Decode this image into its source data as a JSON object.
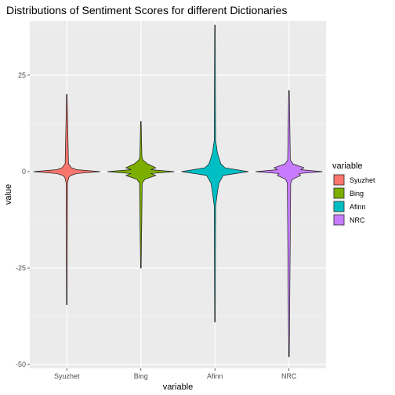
{
  "chart_data": {
    "type": "violin",
    "title": "Distributions of Sentiment Scores for different Dictionaries",
    "xlabel": "variable",
    "ylabel": "value",
    "categories": [
      "Syuzhet",
      "Bing",
      "Afinn",
      "NRC"
    ],
    "ylim": [
      -51,
      39
    ],
    "yticks": [
      -50,
      -25,
      0,
      25
    ],
    "ytick_labels": [
      "-50",
      "-25",
      "0",
      "25"
    ],
    "grid": true,
    "legend": {
      "title": "variable",
      "position": "right",
      "entries": [
        "Syuzhet",
        "Bing",
        "Afinn",
        "NRC"
      ]
    },
    "series": [
      {
        "category": "Syuzhet",
        "color": "#F8766D",
        "min": -34.5,
        "max": 20,
        "center": 0,
        "profile": [
          [
            -3,
            0.02
          ],
          [
            -1.5,
            0.06
          ],
          [
            -1,
            0.12
          ],
          [
            -0.5,
            0.3
          ],
          [
            0,
            1.0
          ],
          [
            0.5,
            0.3
          ],
          [
            1,
            0.14
          ],
          [
            1.5,
            0.1
          ],
          [
            2,
            0.05
          ]
        ]
      },
      {
        "category": "Bing",
        "color": "#7CAE00",
        "min": -25,
        "max": 13,
        "center": 0,
        "profile": [
          [
            -3,
            0.04
          ],
          [
            -2,
            0.12
          ],
          [
            -1,
            0.45
          ],
          [
            -0.5,
            0.3
          ],
          [
            0,
            1.0
          ],
          [
            0.5,
            0.3
          ],
          [
            1,
            0.45
          ],
          [
            2,
            0.2
          ],
          [
            3,
            0.06
          ],
          [
            4,
            0.03
          ]
        ]
      },
      {
        "category": "Afinn",
        "color": "#00BFC4",
        "min": -39,
        "max": 38,
        "center": 0,
        "profile": [
          [
            -9,
            0.02
          ],
          [
            -7,
            0.05
          ],
          [
            -5,
            0.08
          ],
          [
            -3,
            0.12
          ],
          [
            -1,
            0.25
          ],
          [
            0,
            1.0
          ],
          [
            1,
            0.3
          ],
          [
            2,
            0.18
          ],
          [
            3,
            0.14
          ],
          [
            5,
            0.07
          ],
          [
            7,
            0.04
          ],
          [
            8,
            0.02
          ]
        ]
      },
      {
        "category": "NRC",
        "color": "#C77CFF",
        "min": -48,
        "max": 21,
        "center": 0,
        "profile": [
          [
            -3,
            0.05
          ],
          [
            -2,
            0.1
          ],
          [
            -1,
            0.35
          ],
          [
            -0.5,
            0.3
          ],
          [
            0,
            1.0
          ],
          [
            0.5,
            0.35
          ],
          [
            1,
            0.45
          ],
          [
            2,
            0.12
          ],
          [
            3,
            0.04
          ]
        ]
      }
    ]
  }
}
